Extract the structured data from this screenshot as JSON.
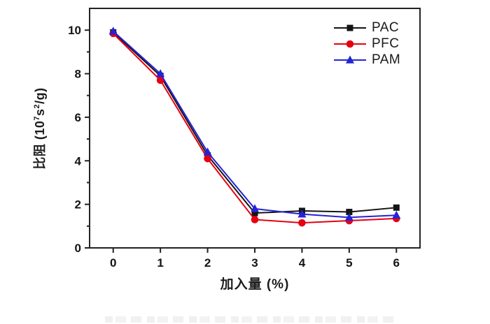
{
  "figure": {
    "background": "#ffffff",
    "frame_color": "#222222",
    "has_cropped_caption_at_bottom": true
  },
  "chart_data": {
    "type": "line",
    "x": [
      0,
      1,
      2,
      3,
      4,
      5,
      6
    ],
    "series": [
      {
        "name": "PAC",
        "color": "#141414",
        "marker": "square",
        "values": [
          9.9,
          7.9,
          4.25,
          1.6,
          1.7,
          1.65,
          1.85
        ]
      },
      {
        "name": "PFC",
        "color": "#e60012",
        "marker": "circle",
        "values": [
          9.85,
          7.7,
          4.1,
          1.3,
          1.15,
          1.25,
          1.35
        ]
      },
      {
        "name": "PAM",
        "color": "#2424d6",
        "marker": "triangle",
        "values": [
          9.95,
          8.0,
          4.4,
          1.8,
          1.55,
          1.4,
          1.5
        ]
      }
    ],
    "title": "",
    "xlabel": "加入量 (%)",
    "ylabel": "比阻 (10⁷s²/g)",
    "ylabel_parts": {
      "base1": "比阻 (10",
      "sup1": "7",
      "base2": "s",
      "sup2": "2",
      "base3": "/g)"
    },
    "xlim": [
      -0.5,
      6.5
    ],
    "ylim": [
      0,
      11
    ],
    "x_major_ticks": [
      0,
      1,
      2,
      3,
      4,
      5,
      6
    ],
    "y_major_ticks": [
      0,
      2,
      4,
      6,
      8,
      10
    ],
    "y_minor_ticks": [
      1,
      3,
      5,
      7,
      9
    ],
    "grid": false,
    "legend_position": "top-right",
    "tick_direction": "out"
  }
}
